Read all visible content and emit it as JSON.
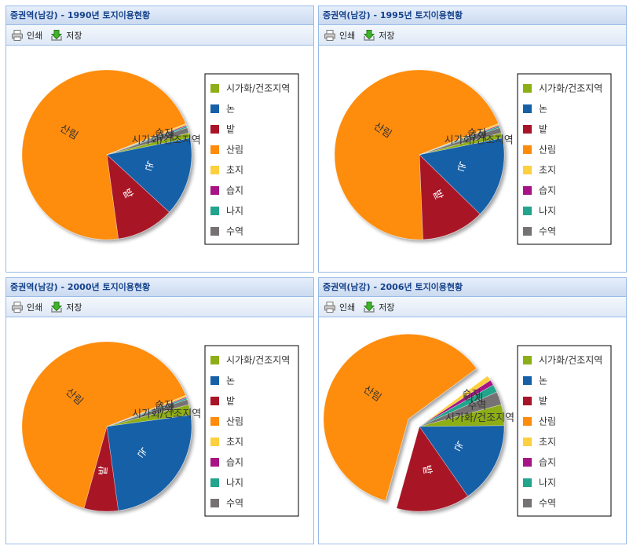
{
  "toolbar": {
    "print_label": "인쇄",
    "save_label": "저장"
  },
  "legend_labels": [
    "시가화/건조지역",
    "논",
    "밭",
    "산림",
    "초지",
    "습지",
    "나지",
    "수역"
  ],
  "legend_colors": [
    "#8eae18",
    "#1660a8",
    "#a81428",
    "#fe8c0a",
    "#fcd03e",
    "#a81486",
    "#23a48c",
    "#767172"
  ],
  "panels": [
    {
      "title": "중권역(남강) - 1990년 토지이용현황"
    },
    {
      "title": "중권역(남강) - 1995년 토지이용현황"
    },
    {
      "title": "중권역(남강) - 2000년 토지이용현황"
    },
    {
      "title": "중권역(남강) - 2006년 토지이용현황"
    }
  ],
  "chart_data": [
    {
      "type": "pie",
      "title": "중권역(남강) - 1990년 토지이용현황",
      "categories": [
        "시가화/건조지역",
        "논",
        "밭",
        "산림",
        "초지",
        "습지",
        "나지",
        "수역"
      ],
      "values": [
        1.0,
        15.0,
        11.0,
        71.2,
        0.3,
        0.2,
        0.3,
        1.0
      ],
      "slice_labels": [
        "시가화/건조지역",
        "논",
        "밭",
        "산림",
        "",
        "습지",
        "",
        "수역"
      ]
    },
    {
      "type": "pie",
      "title": "중권역(남강) - 1995년 토지이용현황",
      "categories": [
        "시가화/건조지역",
        "논",
        "밭",
        "산림",
        "초지",
        "습지",
        "나지",
        "수역"
      ],
      "values": [
        1.0,
        15.5,
        12.0,
        69.7,
        0.3,
        0.2,
        0.3,
        1.0
      ],
      "slice_labels": [
        "시가화/건조지역",
        "논",
        "밭",
        "산림",
        "",
        "습지",
        "",
        "수역"
      ]
    },
    {
      "type": "pie",
      "title": "중권역(남강) - 2000년 토지이용현황",
      "categories": [
        "시가화/건조지역",
        "논",
        "밭",
        "산림",
        "초지",
        "습지",
        "나지",
        "수역"
      ],
      "values": [
        2.0,
        25.0,
        6.5,
        64.7,
        0.3,
        0.2,
        0.3,
        1.0
      ],
      "slice_labels": [
        "시가화/건조지역",
        "논",
        "밭",
        "산림",
        "",
        "습지",
        "",
        "수역"
      ]
    },
    {
      "type": "pie",
      "title": "중권역(남강) - 2006년 토지이용현황",
      "categories": [
        "시가화/건조지역",
        "논",
        "밭",
        "산림",
        "초지",
        "습지",
        "나지",
        "수역"
      ],
      "values": [
        4.0,
        15.5,
        14.0,
        60.5,
        1.0,
        1.0,
        1.5,
        2.5
      ],
      "slice_labels": [
        "시가화/건조지역",
        "논",
        "밭",
        "산림",
        "",
        "습지",
        "나지",
        "수역"
      ],
      "exploded": "산림"
    }
  ]
}
